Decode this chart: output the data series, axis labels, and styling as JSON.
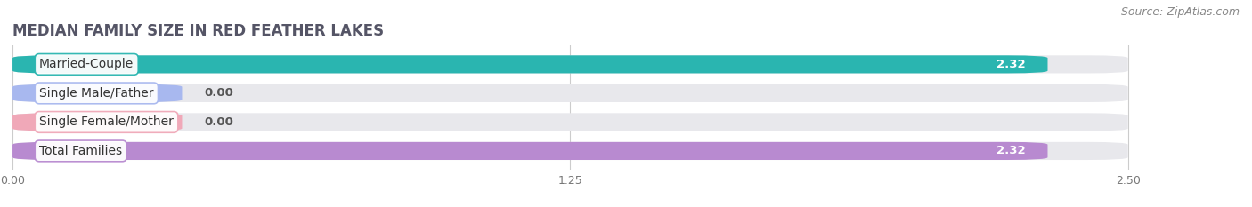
{
  "title": "MEDIAN FAMILY SIZE IN RED FEATHER LAKES",
  "source": "Source: ZipAtlas.com",
  "categories": [
    "Married-Couple",
    "Single Male/Father",
    "Single Female/Mother",
    "Total Families"
  ],
  "values": [
    2.32,
    0.0,
    0.0,
    2.32
  ],
  "bar_colors": [
    "#2ab5b0",
    "#a8b8ef",
    "#f0a8b8",
    "#b88ad0"
  ],
  "xlim": [
    0,
    2.75
  ],
  "bar_max": 2.32,
  "xticks": [
    0.0,
    1.25,
    2.5
  ],
  "xtick_labels": [
    "0.00",
    "1.25",
    "2.50"
  ],
  "bar_height": 0.62,
  "background_color": "#ffffff",
  "bar_bg_color": "#e8e8ec",
  "title_fontsize": 12,
  "label_fontsize": 10,
  "value_fontsize": 9.5,
  "tick_fontsize": 9,
  "source_fontsize": 9
}
